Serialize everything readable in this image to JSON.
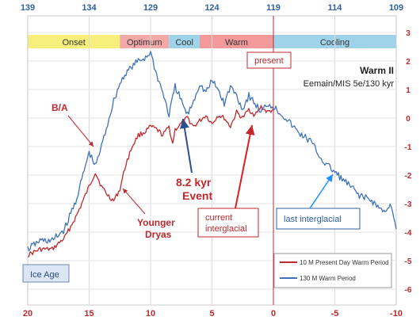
{
  "chart_data": {
    "type": "line",
    "x_bottom": {
      "ticks": [
        20,
        15,
        10,
        5,
        0,
        -5,
        -10
      ],
      "range": [
        20,
        -10
      ],
      "reversed": true
    },
    "x_top": {
      "ticks": [
        139,
        134,
        129,
        124,
        119,
        114,
        109
      ],
      "range": [
        139,
        109
      ],
      "reversed": true
    },
    "y_right": {
      "ticks": [
        3,
        2,
        1,
        0,
        -1,
        -2,
        -3,
        -4,
        -5,
        -6
      ],
      "range": [
        -6,
        3
      ]
    },
    "grid": true,
    "legend_position": "bottom-right",
    "phases": [
      {
        "label": "Onset",
        "start": 139,
        "end": 131.5,
        "color": "#f7ef7c"
      },
      {
        "label": "Optimum",
        "start": 131.5,
        "end": 127.5,
        "color": "#f4a9a9"
      },
      {
        "label": "Cool",
        "start": 127.5,
        "end": 125,
        "color": "#9fd3ea"
      },
      {
        "label": "Warm",
        "start": 125,
        "end": 119,
        "color": "#f29a9a"
      },
      {
        "label": "Cooling",
        "start": 119,
        "end": 109,
        "color": "#9fd3ea"
      }
    ],
    "present_marker_x": 0,
    "title": "Warm II",
    "subtitle": "Eemain/MIS 5e/130 kyr",
    "annotations": [
      {
        "id": "ba",
        "text": "B/A",
        "color": "#c0282d"
      },
      {
        "id": "younger-dryas",
        "lines": [
          "Younger",
          "Dryas"
        ],
        "color": "#c0282d"
      },
      {
        "id": "event-8-2",
        "lines": [
          "8.2 kyr",
          "Event"
        ],
        "color": "#c0282d"
      },
      {
        "id": "present",
        "text": "present",
        "color": "#c0282d"
      },
      {
        "id": "current-interglacial",
        "lines": [
          "current",
          "interglacial"
        ],
        "color": "#c0282d"
      },
      {
        "id": "last-interglacial",
        "text": "last interglacial",
        "color": "#2e5fa5"
      },
      {
        "id": "ice-age",
        "text": "Ice Age",
        "color": "#2e4a7a"
      }
    ],
    "series": [
      {
        "name": "10 M Present Day Warm Period",
        "color": "#c0282d",
        "axis": "bottom",
        "x": [
          20,
          19,
          18,
          17,
          16,
          15,
          14.5,
          14,
          13.5,
          13,
          12.5,
          12,
          11.5,
          11,
          10.5,
          10,
          9.5,
          9,
          8.5,
          8.2,
          8,
          7.5,
          7,
          6.5,
          6,
          5.5,
          5,
          4.5,
          4,
          3.5,
          3,
          2.5,
          2,
          1.5,
          1,
          0.5,
          0
        ],
        "y": [
          -4.8,
          -4.6,
          -4.6,
          -4.2,
          -3.4,
          -2.4,
          -1.9,
          -2.4,
          -2.7,
          -2.9,
          -2.5,
          -1.6,
          -1.0,
          -0.6,
          -0.5,
          -0.3,
          -0.4,
          -0.6,
          -0.3,
          -0.9,
          -0.4,
          -0.2,
          0.0,
          -0.3,
          -0.1,
          0.1,
          -0.2,
          0.1,
          0.0,
          -0.3,
          0.2,
          0.0,
          0.3,
          0.1,
          0.4,
          0.2,
          0.3
        ]
      },
      {
        "name": "130 M Warm Period",
        "color": "#3f72b8",
        "axis": "top",
        "x": [
          139,
          138,
          137,
          136,
          135,
          134.5,
          134,
          133.5,
          133,
          132.5,
          132,
          131.5,
          131,
          130.5,
          130,
          129.5,
          129,
          128.5,
          128,
          127.5,
          127,
          126.5,
          126,
          125.5,
          125,
          124.5,
          124,
          123.5,
          123,
          122.5,
          122,
          121.5,
          121,
          120.5,
          120,
          119.5,
          119,
          118,
          117,
          116,
          115,
          114,
          113,
          112,
          111,
          110,
          109.5,
          109
        ],
        "y": [
          -4.6,
          -4.3,
          -4.3,
          -3.9,
          -2.8,
          -2.0,
          -1.2,
          -1.7,
          -1.0,
          -0.2,
          0.6,
          1.2,
          1.6,
          1.8,
          2.0,
          2.1,
          2.3,
          1.5,
          0.9,
          0.1,
          1.1,
          0.6,
          0.1,
          0.6,
          1.2,
          0.9,
          1.3,
          1.0,
          0.5,
          1.1,
          0.8,
          0.3,
          0.8,
          0.5,
          0.2,
          0.5,
          0.4,
          0.0,
          -0.5,
          -0.8,
          -1.5,
          -1.9,
          -2.3,
          -2.7,
          -2.9,
          -3.3,
          -3.0,
          -3.9
        ]
      }
    ]
  }
}
